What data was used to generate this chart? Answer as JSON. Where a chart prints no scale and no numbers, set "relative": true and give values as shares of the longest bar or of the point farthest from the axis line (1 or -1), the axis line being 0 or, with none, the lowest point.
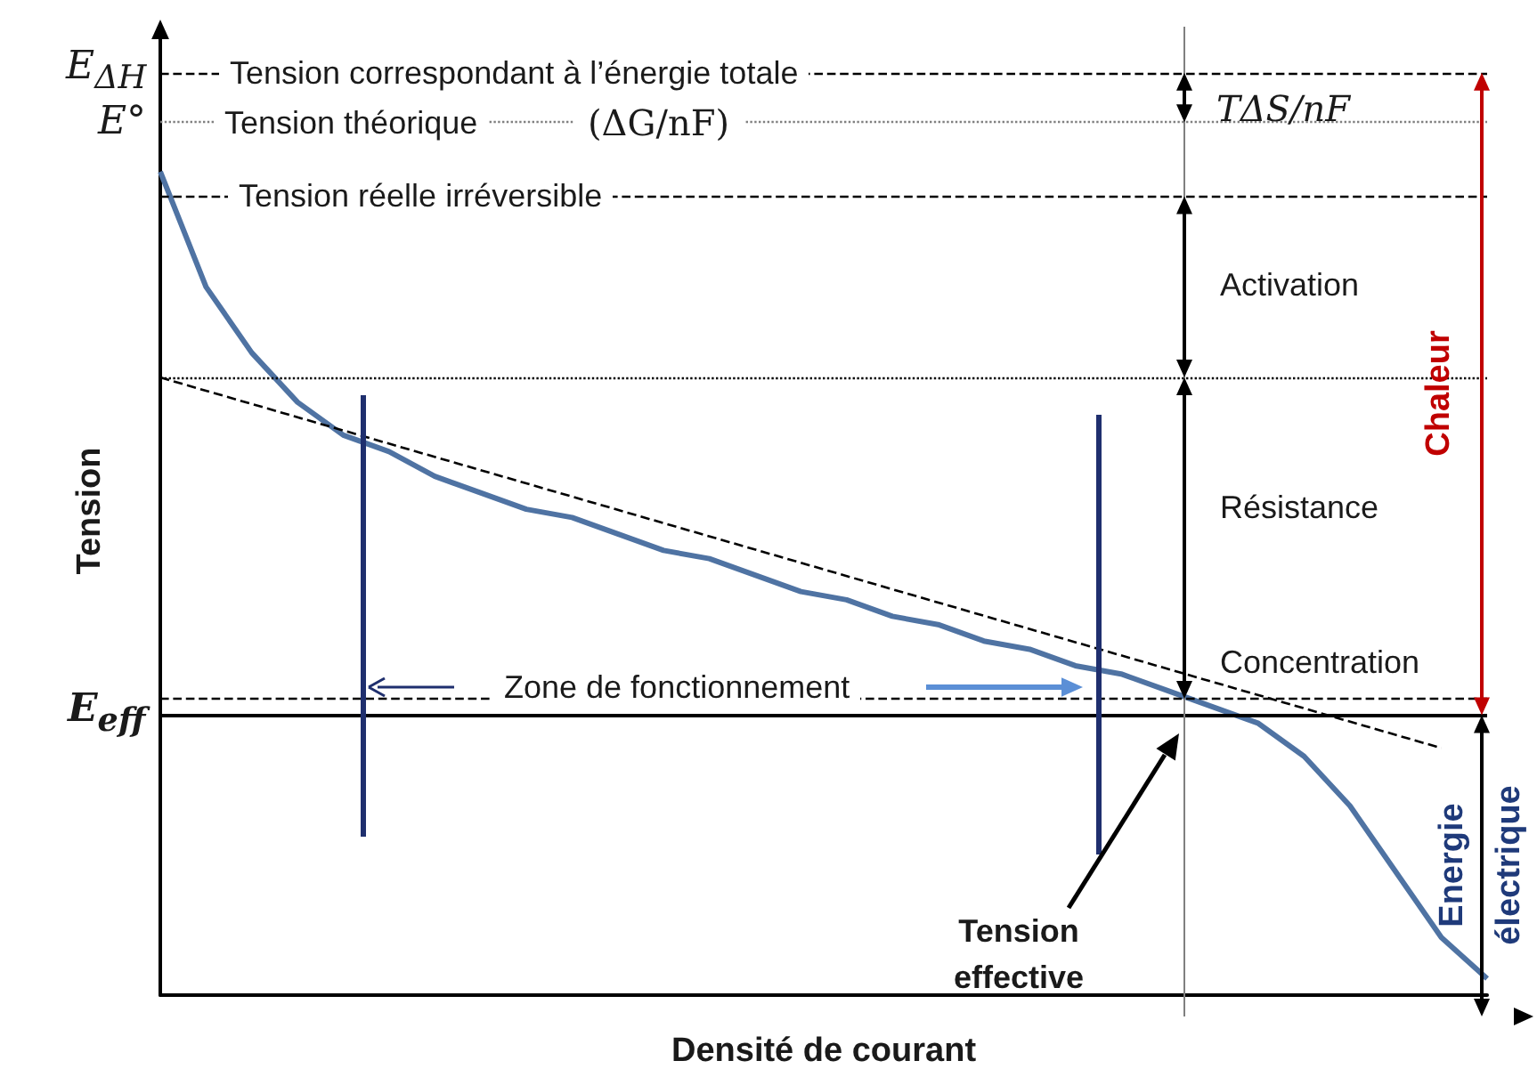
{
  "chart_data": {
    "type": "line",
    "relative": true,
    "xlabel": "Densité de courant",
    "ylabel": "Tension",
    "marker": "none",
    "grid": false,
    "categories": [
      null,
      null,
      null,
      null,
      null,
      null,
      null,
      null,
      null,
      null,
      null,
      null,
      null,
      null,
      null,
      null,
      null,
      null,
      null,
      null,
      null,
      null,
      null,
      null,
      null,
      null,
      null,
      null,
      null,
      null
    ],
    "series": [
      {
        "color": "#4f73a3",
        "values": [
          1.0,
          0.86,
          0.78,
          0.72,
          0.68,
          0.66,
          0.63,
          0.61,
          0.59,
          0.58,
          0.56,
          0.54,
          0.53,
          0.51,
          0.49,
          0.48,
          0.46,
          0.45,
          0.43,
          0.42,
          0.4,
          0.39,
          0.37,
          0.35,
          0.33,
          0.29,
          0.23,
          0.15,
          0.07,
          0.02
        ]
      },
      {
        "type": "line",
        "color": "#000000",
        "line_style": "dashed",
        "values": [
          0.75,
          null,
          null,
          null,
          null,
          null,
          null,
          null,
          null,
          null,
          null,
          null,
          null,
          null,
          null,
          null,
          null,
          null,
          null,
          null,
          null,
          null,
          null,
          null,
          null,
          null,
          null,
          null,
          0.3,
          null
        ]
      }
    ],
    "ref_lines": [
      {
        "axis": "y",
        "value": 1.12,
        "label": "E$_{ΔH}$",
        "line_style": "dashed",
        "color": "#000000"
      },
      {
        "axis": "y",
        "value": 1.06,
        "label": "E°",
        "line_style": "dotted",
        "color": "#808080"
      },
      {
        "axis": "y",
        "value": 0.97,
        "line_style": "dashed",
        "color": "#000000"
      },
      {
        "axis": "y",
        "value": 0.75,
        "line_style": "dotted",
        "color": "#000000"
      },
      {
        "axis": "y",
        "value": 0.36,
        "line_style": "dashed",
        "color": "#000000"
      },
      {
        "axis": "y",
        "value": 0.34,
        "label": "E$_{eff}$",
        "line_style": "solid",
        "color": "#000000"
      }
    ],
    "annotations": [
      "Tension correspondant à l’énergie totale",
      "Tension théorique",
      "(ΔG/nF)",
      "Tension réelle irréversible",
      "TΔS/nF",
      "Activation",
      "Résistance",
      "Concentration",
      "Chaleur",
      "Zone de fonctionnement",
      "Tension effective",
      "Energie électrique"
    ]
  }
}
